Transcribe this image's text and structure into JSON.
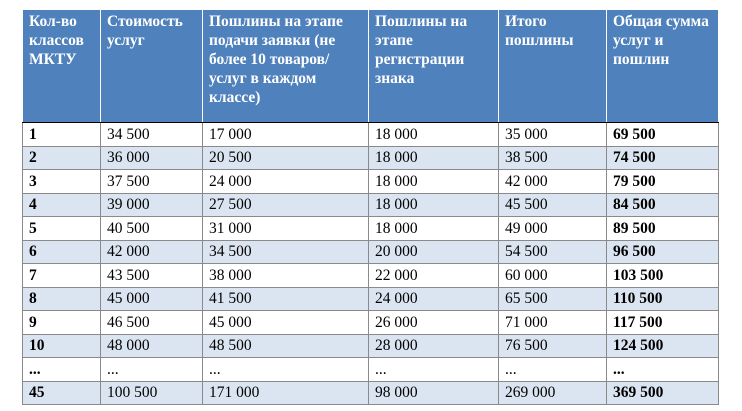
{
  "table": {
    "header": [
      "Кол-во классов МКТУ",
      "Стоимость услуг",
      "Пошлины на этапе подачи заявки (не более 10 товаров/услуг в каждом классе)",
      "Пошлины на этапе регистрации знака",
      "Итого пошлины",
      "Общая сумма услуг и пошлин"
    ],
    "rows": [
      [
        "1",
        "34 500",
        "17 000",
        "18 000",
        "35 000",
        "69 500"
      ],
      [
        "2",
        "36 000",
        "20 500",
        "18 000",
        "38 500",
        "74 500"
      ],
      [
        "3",
        "37 500",
        "24 000",
        "18 000",
        "42 000",
        "79 500"
      ],
      [
        "4",
        "39 000",
        "27 500",
        "18 000",
        "45 500",
        "84 500"
      ],
      [
        "5",
        "40 500",
        "31 000",
        "18 000",
        "49 000",
        "89 500"
      ],
      [
        "6",
        "42 000",
        "34 500",
        "20 000",
        "54 500",
        "96 500"
      ],
      [
        "7",
        "43 500",
        "38 000",
        "22 000",
        "60 000",
        "103 500"
      ],
      [
        "8",
        "45 000",
        "41 500",
        "24 000",
        "65 500",
        "110 500"
      ],
      [
        "9",
        "46 500",
        "45 000",
        "26 000",
        "71 000",
        "117 500"
      ],
      [
        "10",
        "48 000",
        "48 500",
        "28 000",
        "76 500",
        "124 500"
      ],
      [
        "...",
        "...",
        "...",
        "...",
        "...",
        "..."
      ],
      [
        "45",
        "100 500",
        "171 000",
        "98 000",
        "269 000",
        "369 500"
      ]
    ]
  }
}
